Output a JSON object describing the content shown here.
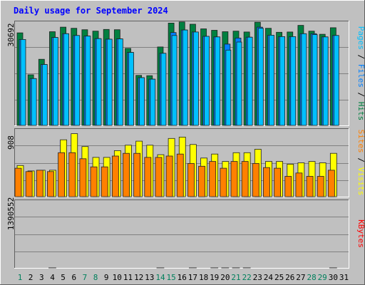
{
  "chart_data": {
    "type": "bar",
    "title": "Daily usage for September 2024",
    "days": [
      "1",
      "2",
      "3",
      "4",
      "5",
      "6",
      "7",
      "8",
      "9",
      "10",
      "11",
      "12",
      "13",
      "14",
      "15",
      "16",
      "17",
      "18",
      "19",
      "20",
      "21",
      "22",
      "23",
      "24",
      "25",
      "26",
      "27",
      "28",
      "29",
      "30",
      "31"
    ],
    "weekend_days": [
      1,
      7,
      8,
      14,
      15,
      21,
      22,
      28,
      29
    ],
    "panels": [
      {
        "id": "hits-files-pages",
        "tick_label": "30692",
        "ylim": [
          0,
          36200
        ],
        "axis_label": {
          "parts": [
            "Pages",
            " / ",
            "Files",
            " / ",
            "Hits"
          ]
        },
        "series": [
          {
            "name": "Hits",
            "values": [
              32200,
              17600,
              23000,
              32600,
              34200,
              33800,
              33300,
              32800,
              33400,
              33300,
              26800,
              17400,
              17300,
              27300,
              35600,
              36000,
              35200,
              33600,
              33100,
              32600,
              32800,
              32500,
              35900,
              33800,
              32400,
              32500,
              34800,
              32800,
              31700,
              34000,
              0
            ]
          },
          {
            "name": "Files",
            "values": [
              29900,
              16300,
              21200,
              30600,
              31900,
              31300,
              31100,
              30200,
              30000,
              30100,
              25400,
              16600,
              16100,
              25100,
              32300,
              33200,
              32500,
              31000,
              30800,
              28300,
              30400,
              30700,
              34200,
              31400,
              30900,
              30900,
              31900,
              31900,
              30800,
              31300,
              0
            ]
          },
          {
            "name": "Pages",
            "values": [
              29900,
              16300,
              21200,
              30600,
              31900,
              31300,
              31100,
              30200,
              30000,
              30100,
              25400,
              16600,
              16100,
              25100,
              31300,
              33200,
              32500,
              31000,
              30800,
              26200,
              29000,
              30700,
              33800,
              31400,
              30900,
              30900,
              31900,
              31600,
              30800,
              31300,
              0
            ]
          }
        ]
      },
      {
        "id": "visits-sites",
        "tick_label": "908",
        "ylim": [
          0,
          1000
        ],
        "axis_label": {
          "parts": [
            "Sites",
            " / ",
            "Visits"
          ]
        },
        "series": [
          {
            "name": "Visits",
            "values": [
              460,
              380,
              390,
              390,
              840,
              930,
              740,
              580,
              580,
              680,
              760,
              820,
              760,
              620,
              860,
              880,
              770,
              570,
              630,
              520,
              650,
              650,
              700,
              520,
              520,
              480,
              500,
              520,
              500,
              640,
              0
            ]
          },
          {
            "name": "Sites",
            "values": [
              420,
              370,
              390,
              370,
              650,
              650,
              560,
              440,
              440,
              600,
              640,
              640,
              580,
              580,
              600,
              630,
              490,
              450,
              520,
              420,
              520,
              520,
              490,
              430,
              420,
              300,
              350,
              300,
              300,
              390,
              0
            ]
          }
        ]
      },
      {
        "id": "kbytes",
        "tick_label": "1390552",
        "ylim": [
          0,
          1910000
        ],
        "axis_label": {
          "parts": [
            "KBytes"
          ]
        },
        "series": [
          {
            "name": "KBytes",
            "values": [
              670,
              660,
              390,
              1110,
              650,
              720,
              780,
              490,
              430,
              820,
              680,
              460,
              700,
              1070,
              990,
              960,
              1310,
              860,
              1280,
              2000,
              1200,
              1310,
              680,
              570,
              450,
              470,
              650,
              730,
              650,
              1310,
              0
            ],
            "unit_scale": 1000
          }
        ]
      }
    ],
    "colors": {
      "hits": "#008040",
      "files": "#0080ff",
      "pages": "#00c0ff",
      "visits": "#ffff00",
      "sites": "#ff8000",
      "kbytes": "#ff0000",
      "background": "#c0c0c0",
      "title": "#0000ff",
      "weekday_label": "#000000",
      "weekend_label": "#00805c"
    }
  }
}
